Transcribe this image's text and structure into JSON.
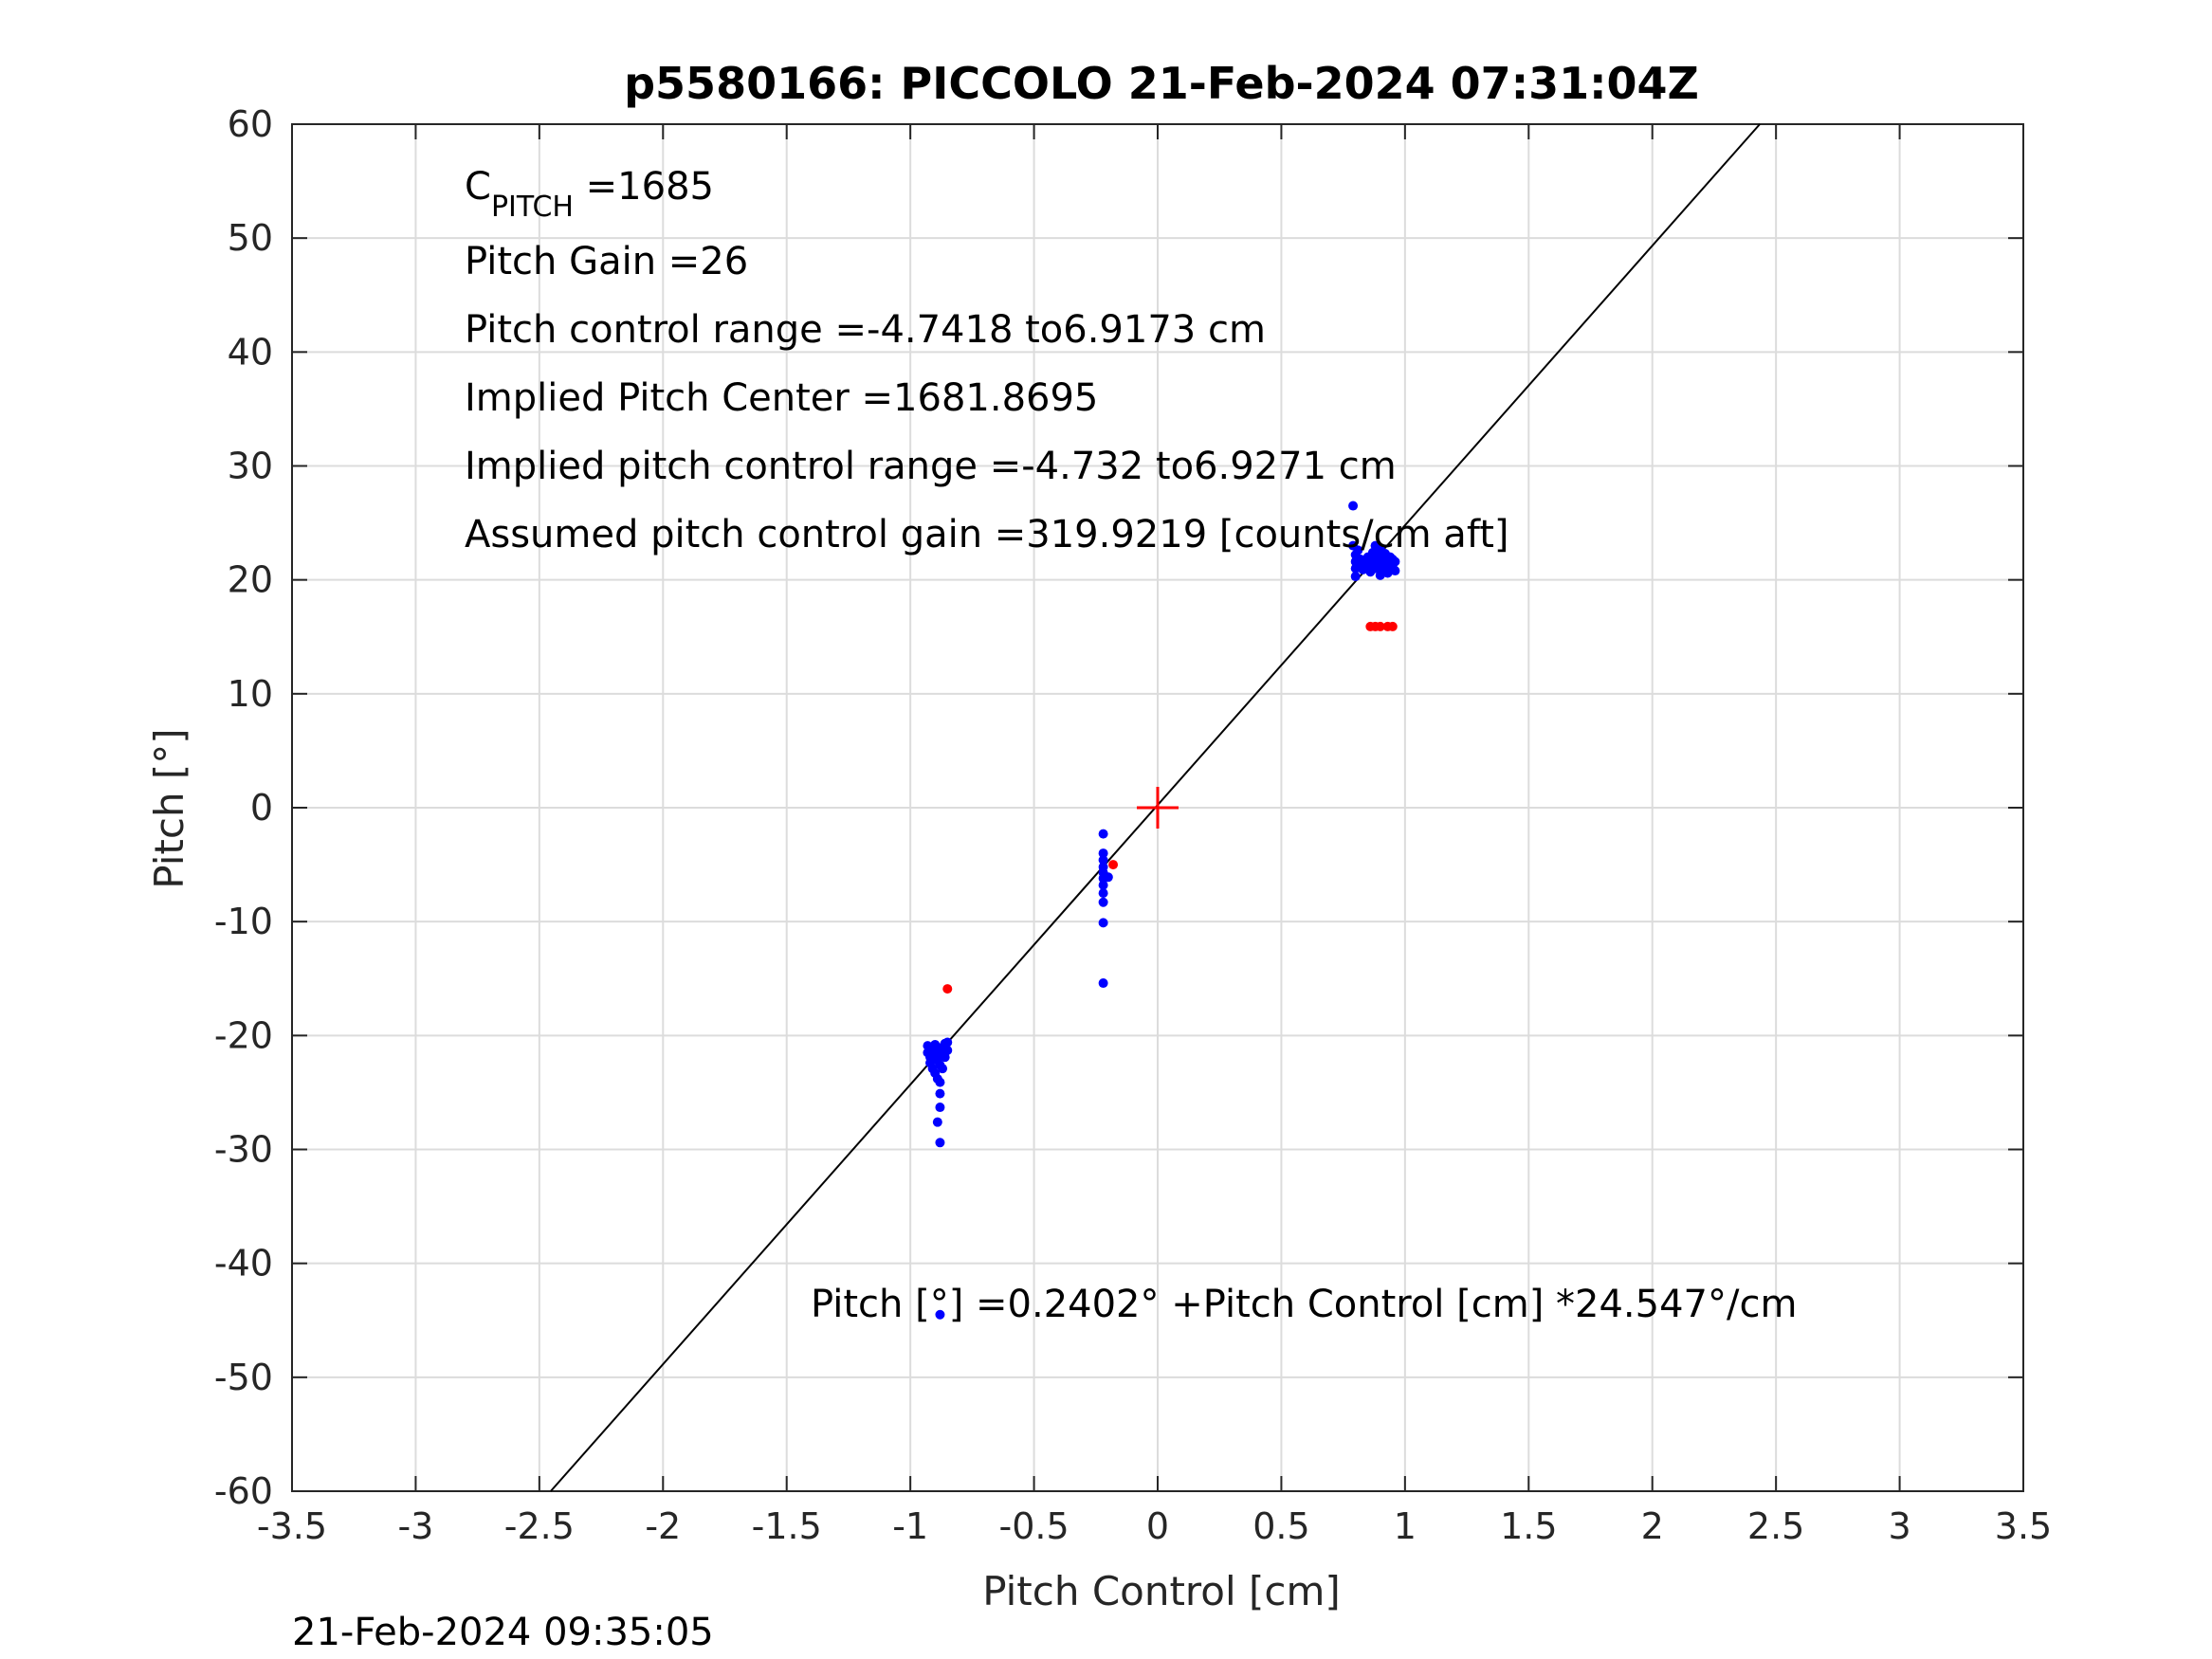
{
  "chart_data": {
    "type": "scatter",
    "title": "p5580166: PICCOLO 21-Feb-2024 07:31:04Z",
    "xlabel": "Pitch Control [cm]",
    "ylabel": "Pitch [°]",
    "xlim": [
      -3.5,
      3.5
    ],
    "ylim": [
      -60,
      60
    ],
    "xticks": [
      -3.5,
      -3,
      -2.5,
      -2,
      -1.5,
      -1,
      -0.5,
      0,
      0.5,
      1,
      1.5,
      2,
      2.5,
      3,
      3.5
    ],
    "xtick_labels": [
      "-3.5",
      "-3",
      "-2.5",
      "-2",
      "-1.5",
      "-1",
      "-0.5",
      "0",
      "0.5",
      "1",
      "1.5",
      "2",
      "2.5",
      "3",
      "3.5"
    ],
    "yticks": [
      -60,
      -50,
      -40,
      -30,
      -20,
      -10,
      0,
      10,
      20,
      30,
      40,
      50,
      60
    ],
    "ytick_labels": [
      "-60",
      "-50",
      "-40",
      "-30",
      "-20",
      "-10",
      "0",
      "10",
      "20",
      "30",
      "40",
      "50",
      "60"
    ],
    "grid": true,
    "colors": {
      "kept": "#0000ff",
      "rejected": "#ff0000",
      "fit": "#000000",
      "center": "#ff0000",
      "grid": "#dcdcdc",
      "axis": "#262626"
    },
    "annotations": {
      "c_pitch": {
        "main": "C",
        "sub": "PITCH",
        "value": " =1685"
      },
      "lines": [
        "Pitch Gain =26",
        "Pitch control range =-4.7418 to6.9173 cm",
        "Implied Pitch Center =1681.8695",
        "Implied pitch control range =-4.732 to6.9271 cm",
        "Assumed pitch control gain =319.9219 [counts/cm aft]"
      ],
      "fit_equation": "Pitch [°] =0.2402° +Pitch Control [cm] *24.547°/cm"
    },
    "fit_line": {
      "intercept": 0.2402,
      "slope": 24.547
    },
    "center_marker": {
      "x": 0,
      "y": 0
    },
    "series": [
      {
        "kind": "kept",
        "points": [
          [
            0.79,
            26.5
          ],
          [
            0.79,
            23.0
          ],
          [
            0.8,
            22.2
          ],
          [
            0.8,
            21.6
          ],
          [
            0.8,
            21.0
          ],
          [
            0.8,
            20.3
          ],
          [
            0.81,
            22.6
          ],
          [
            0.81,
            21.3
          ],
          [
            0.82,
            21.8
          ],
          [
            0.83,
            20.9
          ],
          [
            0.84,
            21.5
          ],
          [
            0.85,
            22.0
          ],
          [
            0.85,
            21.2
          ],
          [
            0.86,
            21.7
          ],
          [
            0.86,
            20.7
          ],
          [
            0.87,
            22.4
          ],
          [
            0.87,
            21.4
          ],
          [
            0.88,
            23.0
          ],
          [
            0.88,
            21.0
          ],
          [
            0.89,
            22.1
          ],
          [
            0.89,
            21.6
          ],
          [
            0.9,
            22.7
          ],
          [
            0.9,
            21.2
          ],
          [
            0.9,
            20.4
          ],
          [
            0.91,
            21.9
          ],
          [
            0.91,
            20.9
          ],
          [
            0.92,
            22.3
          ],
          [
            0.92,
            21.5
          ],
          [
            0.93,
            21.0
          ],
          [
            0.93,
            20.6
          ],
          [
            0.94,
            22.0
          ],
          [
            0.94,
            21.4
          ],
          [
            0.95,
            21.8
          ],
          [
            0.95,
            21.1
          ],
          [
            0.96,
            20.8
          ],
          [
            0.96,
            21.6
          ],
          [
            -0.22,
            -2.3
          ],
          [
            -0.22,
            -4.0
          ],
          [
            -0.22,
            -4.6
          ],
          [
            -0.22,
            -5.2
          ],
          [
            -0.22,
            -5.7
          ],
          [
            -0.22,
            -6.2
          ],
          [
            -0.22,
            -6.8
          ],
          [
            -0.22,
            -7.5
          ],
          [
            -0.22,
            -8.3
          ],
          [
            -0.22,
            -10.1
          ],
          [
            -0.22,
            -15.4
          ],
          [
            -0.2,
            -6.1
          ],
          [
            -0.93,
            -20.9
          ],
          [
            -0.93,
            -21.5
          ],
          [
            -0.92,
            -21.9
          ],
          [
            -0.92,
            -22.4
          ],
          [
            -0.91,
            -21.3
          ],
          [
            -0.91,
            -22.9
          ],
          [
            -0.9,
            -21.7
          ],
          [
            -0.9,
            -23.3
          ],
          [
            -0.9,
            -20.8
          ],
          [
            -0.89,
            -22.2
          ],
          [
            -0.89,
            -23.8
          ],
          [
            -0.88,
            -21.1
          ],
          [
            -0.88,
            -22.6
          ],
          [
            -0.88,
            -24.1
          ],
          [
            -0.87,
            -21.6
          ],
          [
            -0.87,
            -22.9
          ],
          [
            -0.86,
            -20.7
          ],
          [
            -0.86,
            -21.9
          ],
          [
            -0.85,
            -20.6
          ],
          [
            -0.85,
            -21.3
          ],
          [
            -0.88,
            -25.1
          ],
          [
            -0.88,
            -26.3
          ],
          [
            -0.89,
            -27.6
          ],
          [
            -0.88,
            -29.4
          ],
          [
            -0.88,
            -44.5
          ]
        ]
      },
      {
        "kind": "rejected",
        "points": [
          [
            0.86,
            15.9
          ],
          [
            0.88,
            15.9
          ],
          [
            0.9,
            15.9
          ],
          [
            0.93,
            15.9
          ],
          [
            0.95,
            15.9
          ],
          [
            -0.18,
            -5.0
          ],
          [
            -0.85,
            -15.9
          ]
        ]
      }
    ],
    "timestamp": "21-Feb-2024 09:35:05"
  }
}
